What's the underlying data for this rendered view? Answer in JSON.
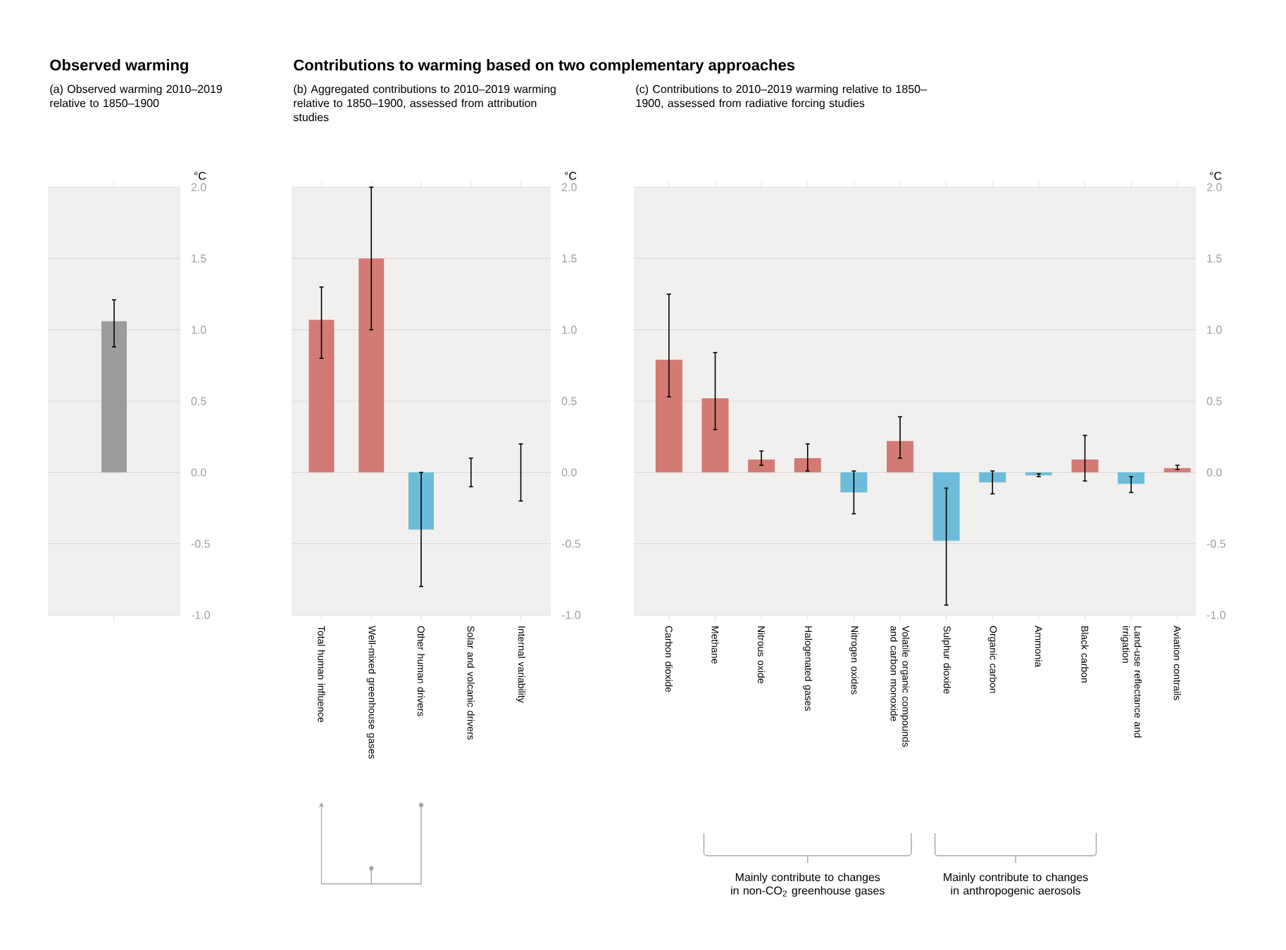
{
  "chart_data": [
    {
      "type": "bar",
      "title": "Observed warming",
      "subtitle": "(a) Observed warming 2010–2019 relative to 1850–1900",
      "ylabel": "°C",
      "categories": [
        null
      ],
      "values": [
        1.06
      ],
      "colors": [
        "#9c9c9e"
      ],
      "errors": [
        [
          0.88,
          1.21
        ]
      ],
      "ylim": [
        -1,
        2
      ],
      "yticks": [
        {
          "value": -1,
          "label": "-1.0"
        },
        {
          "value": -0.5,
          "label": "-0.5"
        },
        {
          "value": 0,
          "label": "0.0"
        },
        {
          "value": 0.5,
          "label": "0.5"
        },
        {
          "value": 1,
          "label": "1.0"
        },
        {
          "value": 1.5,
          "label": "1.5"
        },
        {
          "value": 2,
          "label": "2.0"
        }
      ],
      "grid": "y"
    },
    {
      "type": "bar",
      "title": "Contributions to warming based on two complementary approaches",
      "subtitle": "(b) Aggregated contributions to 2010–2019 warming relative to 1850–1900, assessed from attribution studies",
      "ylabel": "°C",
      "categories": [
        "Total human influence",
        "Well-mixed greenhouse gases",
        "Other human drivers",
        "Solar and volcanic drivers",
        "Internal variability"
      ],
      "values": [
        1.07,
        1.5,
        -0.4,
        0,
        0
      ],
      "colors": [
        "#d47a74",
        "#d47a74",
        "#6cbcd9",
        "#d47a74",
        "#d47a74"
      ],
      "errors": [
        [
          0.8,
          1.3
        ],
        [
          1.0,
          2.0
        ],
        [
          -0.8,
          0.0
        ],
        [
          -0.1,
          0.1
        ],
        [
          -0.2,
          0.2
        ]
      ],
      "ylim": [
        -1,
        2
      ],
      "yticks": [
        {
          "value": -1,
          "label": "-1.0"
        },
        {
          "value": -0.5,
          "label": "-0.5"
        },
        {
          "value": 0,
          "label": "0.0"
        },
        {
          "value": 0.5,
          "label": "0.5"
        },
        {
          "value": 1,
          "label": "1.0"
        },
        {
          "value": 1.5,
          "label": "1.5"
        },
        {
          "value": 2,
          "label": "2.0"
        }
      ],
      "grid": "y"
    },
    {
      "type": "bar",
      "subtitle": "(c) Contributions to 2010–2019 warming relative to 1850–1900, assessed from radiative forcing studies",
      "ylabel": "°C",
      "categories": [
        "Carbon dioxide",
        "Methane",
        "Nitrous oxide",
        "Halogenated gases",
        "Nitrogen oxides",
        "Volatile organic compounds and carbon monoxide",
        "Sulphur dioxide",
        "Organic carbon",
        "Ammonia",
        "Black carbon",
        "Land-use reflectance and irrigation",
        "Aviation contrails"
      ],
      "values": [
        0.79,
        0.52,
        0.09,
        0.1,
        -0.14,
        0.22,
        -0.48,
        -0.07,
        -0.02,
        0.09,
        -0.08,
        0.03
      ],
      "colors": [
        "#d47a74",
        "#d47a74",
        "#d47a74",
        "#d47a74",
        "#6cbcd9",
        "#d47a74",
        "#6cbcd9",
        "#6cbcd9",
        "#6cbcd9",
        "#d47a74",
        "#6cbcd9",
        "#d47a74"
      ],
      "errors": [
        [
          0.53,
          1.25
        ],
        [
          0.3,
          0.84
        ],
        [
          0.05,
          0.15
        ],
        [
          0.01,
          0.2
        ],
        [
          -0.29,
          0.01
        ],
        [
          0.1,
          0.39
        ],
        [
          -0.93,
          -0.11
        ],
        [
          -0.15,
          0.01
        ],
        [
          -0.03,
          -0.01
        ],
        [
          -0.06,
          0.26
        ],
        [
          -0.14,
          -0.03
        ],
        [
          0.02,
          0.05
        ]
      ],
      "ylim": [
        -1,
        2
      ],
      "yticks": [
        {
          "value": -1,
          "label": "-1.0"
        },
        {
          "value": -0.5,
          "label": "-0.5"
        },
        {
          "value": 0,
          "label": "0.0"
        },
        {
          "value": 0.5,
          "label": "0.5"
        },
        {
          "value": 1,
          "label": "1.0"
        },
        {
          "value": 1.5,
          "label": "1.5"
        },
        {
          "value": 2,
          "label": "2.0"
        }
      ],
      "grid": "y",
      "annotations": [
        "Mainly contribute to changes in non-CO$_{2}$ greenhouse gases",
        "Mainly contribute to changes in anthropogenic aerosols"
      ]
    }
  ]
}
